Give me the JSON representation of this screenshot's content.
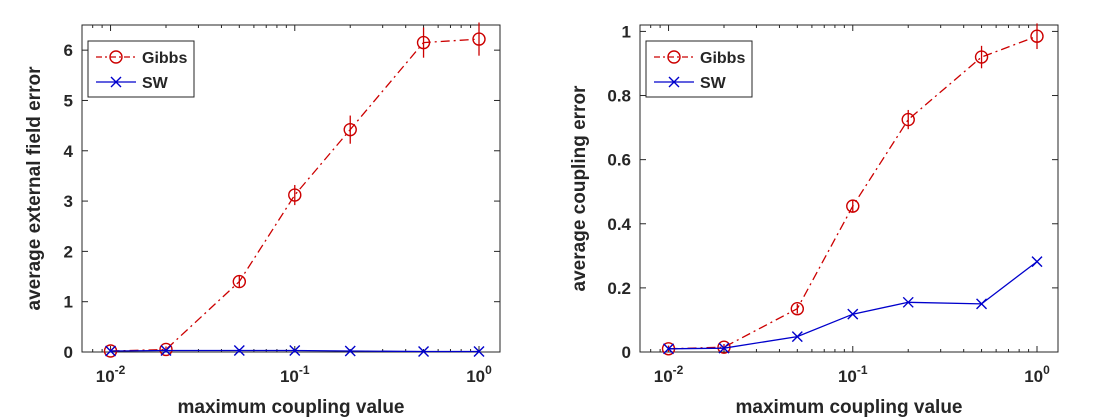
{
  "chart_data": [
    {
      "type": "line",
      "title": "",
      "xlabel": "maximum coupling value",
      "ylabel": "average external field error",
      "xscale": "log",
      "xlim": [
        0.007,
        1.3
      ],
      "ylim": [
        0,
        6.5
      ],
      "xticks": [
        {
          "value": 0.01,
          "base": "10",
          "exp": "-2"
        },
        {
          "value": 0.1,
          "base": "10",
          "exp": "-1"
        },
        {
          "value": 1,
          "base": "10",
          "exp": "0"
        }
      ],
      "yticks": [
        {
          "value": 0,
          "label": "0"
        },
        {
          "value": 1,
          "label": "1"
        },
        {
          "value": 2,
          "label": "2"
        },
        {
          "value": 3,
          "label": "3"
        },
        {
          "value": 4,
          "label": "4"
        },
        {
          "value": 5,
          "label": "5"
        },
        {
          "value": 6,
          "label": "6"
        }
      ],
      "x": [
        0.01,
        0.02,
        0.05,
        0.1,
        0.2,
        0.5,
        1
      ],
      "legend": {
        "position": "top-left"
      },
      "series": [
        {
          "name": "Gibbs",
          "color": "#cc0000",
          "line_style": "dash-dot",
          "marker": "circle",
          "values": [
            0.02,
            0.05,
            1.4,
            3.12,
            4.42,
            6.15,
            6.22
          ],
          "errors": [
            0.05,
            0.06,
            0.12,
            0.2,
            0.28,
            0.3,
            0.33
          ]
        },
        {
          "name": "SW",
          "color": "#0000cc",
          "line_style": "solid",
          "marker": "x",
          "values": [
            0.02,
            0.03,
            0.03,
            0.03,
            0.02,
            0.01,
            0.01
          ],
          "errors": null
        }
      ]
    },
    {
      "type": "line",
      "title": "",
      "xlabel": "maximum coupling value",
      "ylabel": "average coupling error",
      "xscale": "log",
      "xlim": [
        0.007,
        1.3
      ],
      "ylim": [
        0,
        1.02
      ],
      "xticks": [
        {
          "value": 0.01,
          "base": "10",
          "exp": "-2"
        },
        {
          "value": 0.1,
          "base": "10",
          "exp": "-1"
        },
        {
          "value": 1,
          "base": "10",
          "exp": "0"
        }
      ],
      "yticks": [
        {
          "value": 0,
          "label": "0"
        },
        {
          "value": 0.2,
          "label": "0.2"
        },
        {
          "value": 0.4,
          "label": "0.4"
        },
        {
          "value": 0.6,
          "label": "0.6"
        },
        {
          "value": 0.8,
          "label": "0.8"
        },
        {
          "value": 1,
          "label": "1"
        }
      ],
      "x": [
        0.01,
        0.02,
        0.05,
        0.1,
        0.2,
        0.5,
        1
      ],
      "legend": {
        "position": "top-left"
      },
      "series": [
        {
          "name": "Gibbs",
          "color": "#cc0000",
          "line_style": "dash-dot",
          "marker": "circle",
          "values": [
            0.01,
            0.015,
            0.135,
            0.455,
            0.725,
            0.92,
            0.985
          ],
          "errors": [
            0.01,
            0.01,
            0.015,
            0.02,
            0.03,
            0.035,
            0.04
          ]
        },
        {
          "name": "SW",
          "color": "#0000cc",
          "line_style": "solid",
          "marker": "x",
          "values": [
            0.01,
            0.012,
            0.048,
            0.118,
            0.155,
            0.15,
            0.282
          ],
          "errors": null
        }
      ]
    }
  ]
}
